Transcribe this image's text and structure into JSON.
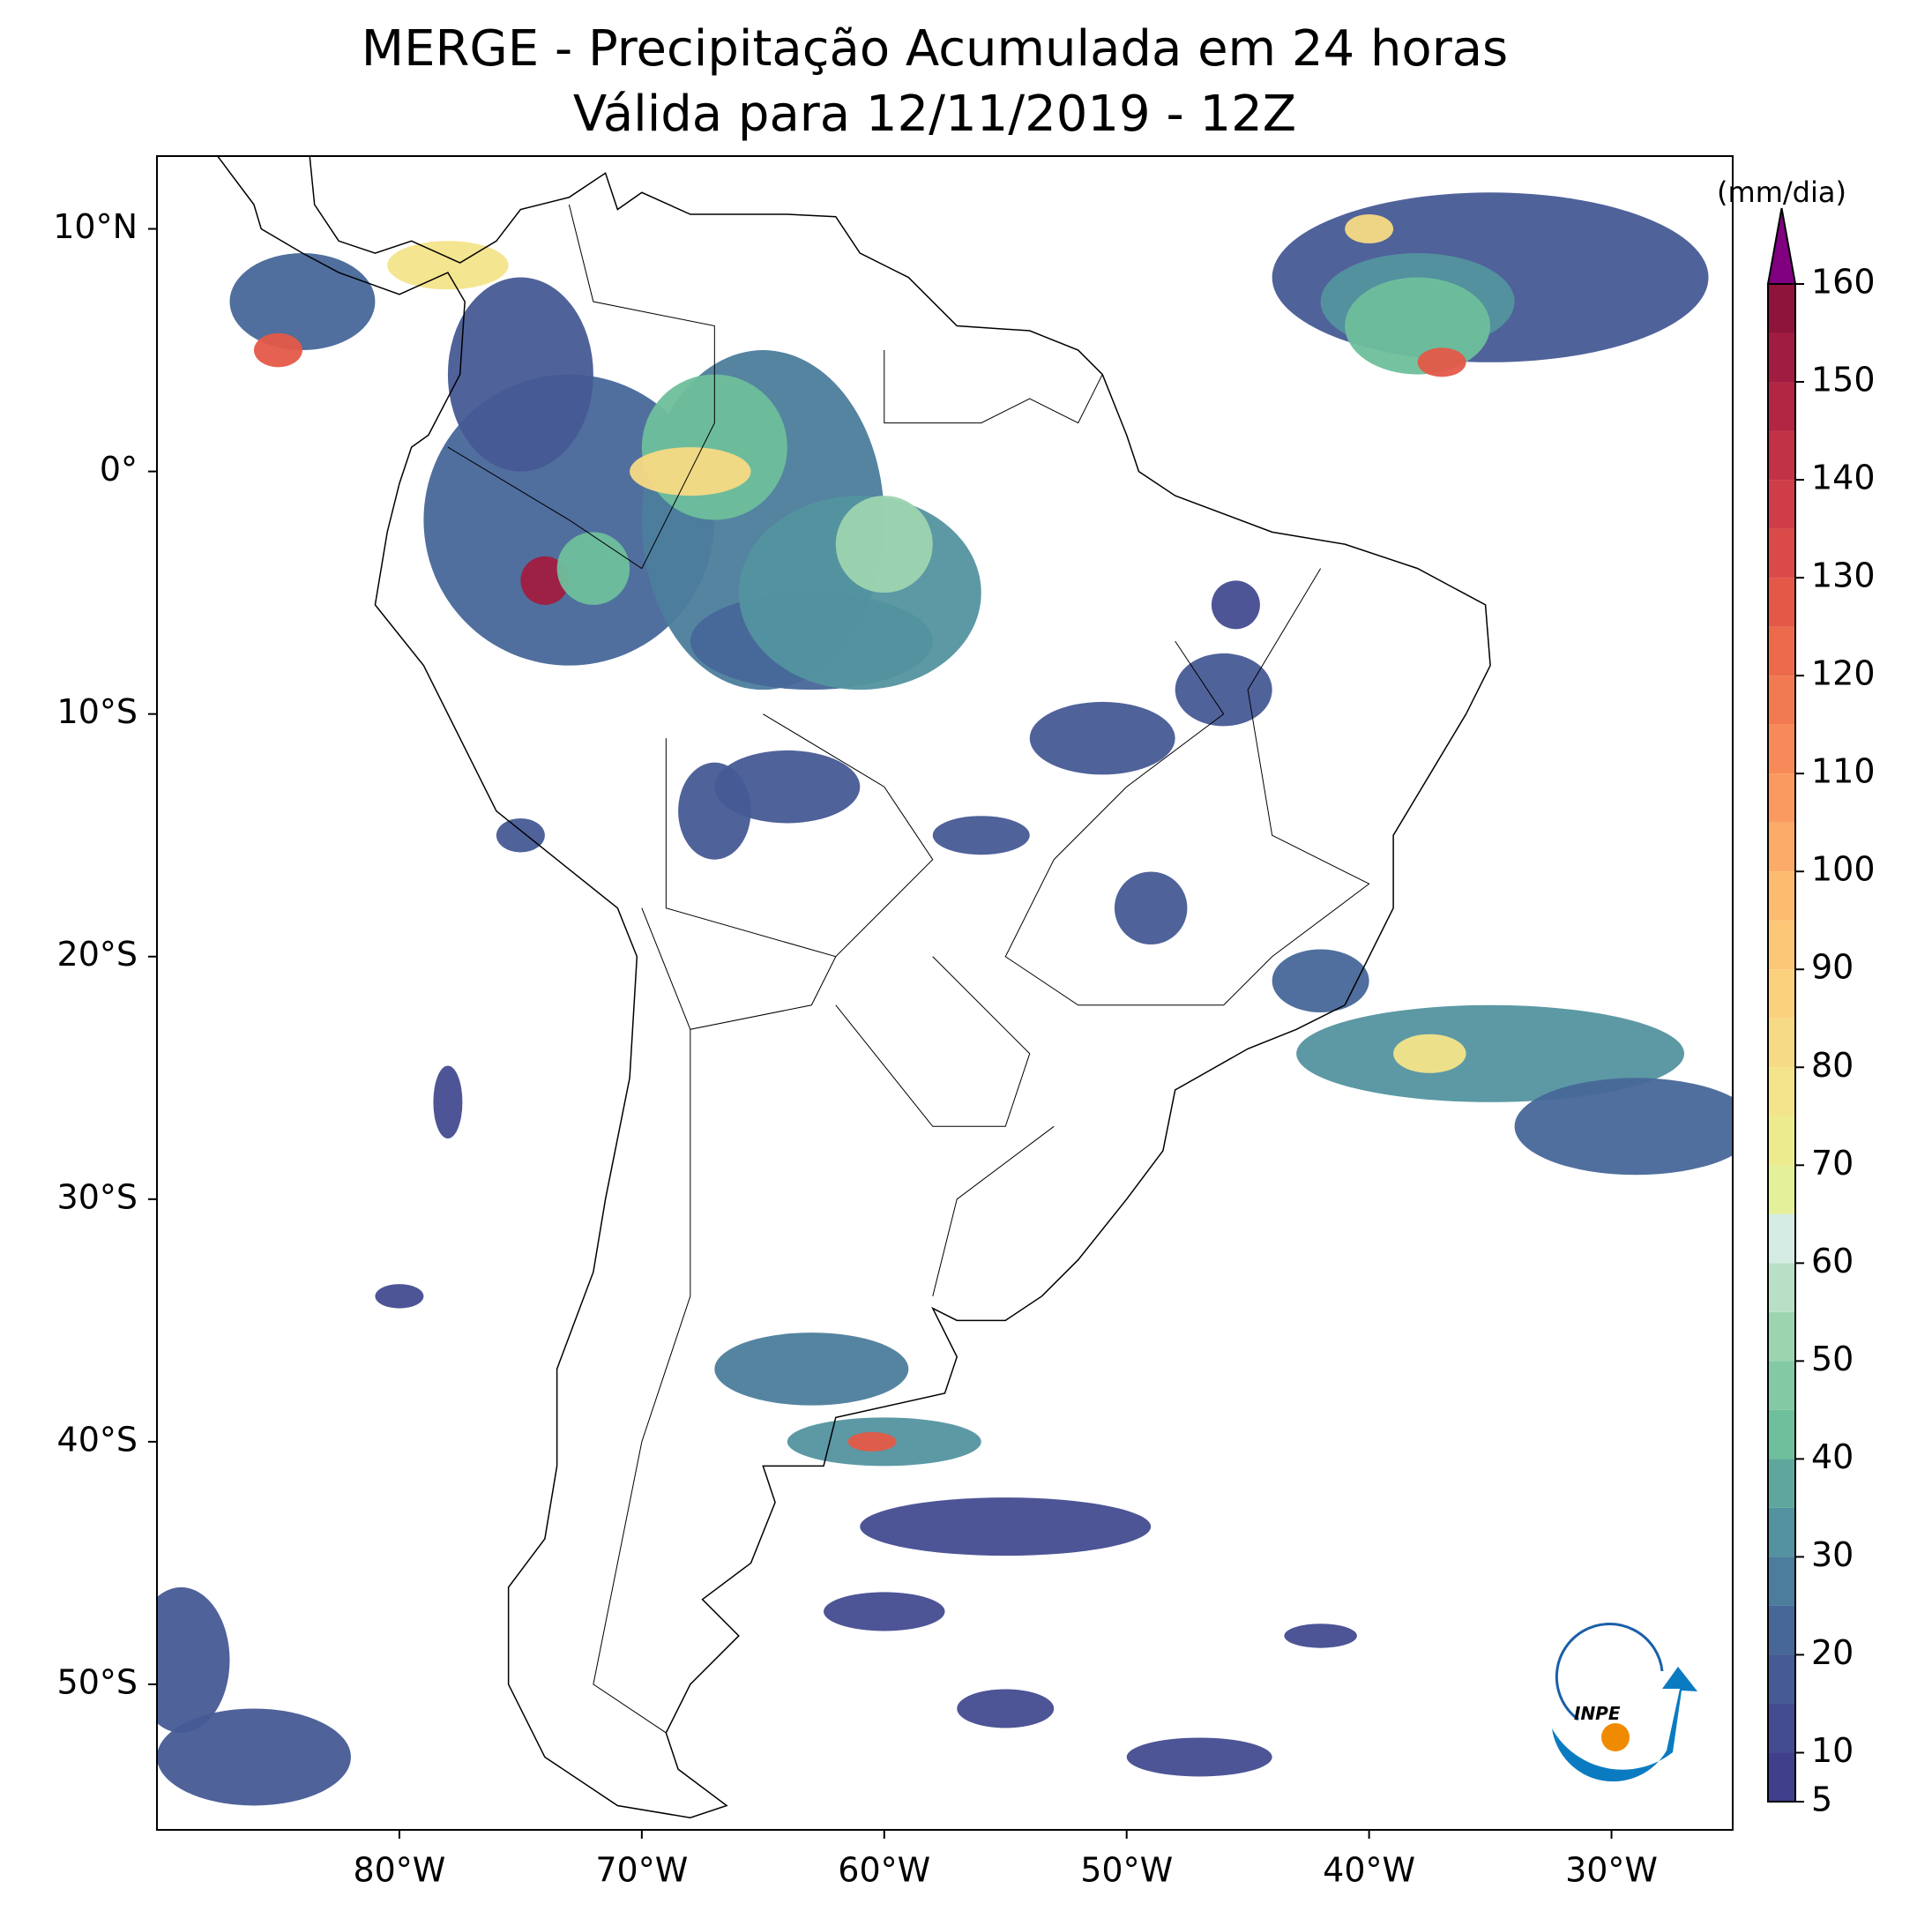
{
  "chart_data": {
    "type": "map",
    "title": "MERGE - Precipitação Acumulada em 24 horas",
    "subtitle": "Válida para 12/11/2019 - 12Z",
    "xlim": [
      -90,
      -25
    ],
    "ylim": [
      -56,
      13
    ],
    "xticks": [
      {
        "value": -80,
        "label": "80°W"
      },
      {
        "value": -70,
        "label": "70°W"
      },
      {
        "value": -60,
        "label": "60°W"
      },
      {
        "value": -50,
        "label": "50°W"
      },
      {
        "value": -40,
        "label": "40°W"
      },
      {
        "value": -30,
        "label": "30°W"
      }
    ],
    "yticks": [
      {
        "value": 10,
        "label": "10°N"
      },
      {
        "value": 0,
        "label": "0°"
      },
      {
        "value": -10,
        "label": "10°S"
      },
      {
        "value": -20,
        "label": "20°S"
      },
      {
        "value": -30,
        "label": "30°S"
      },
      {
        "value": -40,
        "label": "40°S"
      },
      {
        "value": -50,
        "label": "50°S"
      }
    ],
    "colorbar": {
      "label": "(mm/dia)",
      "lim": [
        5,
        160
      ],
      "ticks": [
        5,
        10,
        20,
        30,
        40,
        50,
        60,
        70,
        80,
        90,
        100,
        110,
        120,
        130,
        140,
        150,
        160
      ],
      "bins": [
        5,
        10,
        15,
        20,
        25,
        30,
        35,
        40,
        45,
        50,
        55,
        60,
        65,
        70,
        75,
        80,
        85,
        90,
        95,
        100,
        105,
        110,
        115,
        120,
        125,
        130,
        135,
        140,
        145,
        150,
        155,
        160
      ],
      "colors": [
        "#3f3f8c",
        "#434c90",
        "#465a95",
        "#476799",
        "#4c7d9c",
        "#53939f",
        "#5fa79c",
        "#6ebf9c",
        "#82c9a4",
        "#9dd4b0",
        "#b8e0c6",
        "#d4ece4",
        "#e4f09a",
        "#ecec8e",
        "#f3e48a",
        "#f7da84",
        "#fbd17e",
        "#fdc778",
        "#fdbb70",
        "#fcab68",
        "#fa9a60",
        "#f78a58",
        "#f27a52",
        "#ec6a4c",
        "#e45848",
        "#da4a48",
        "#cf3e48",
        "#c23246",
        "#b12643",
        "#a01c40",
        "#8e143c"
      ],
      "extend_color": "#800080"
    }
  },
  "logo": "INPE"
}
